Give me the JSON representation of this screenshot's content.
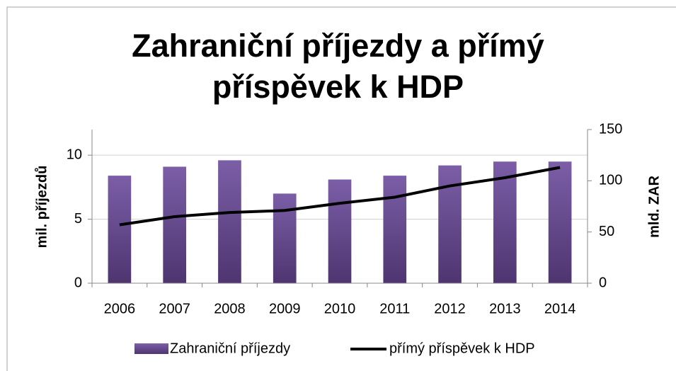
{
  "chart_data": {
    "type": "bar-line",
    "title": "Zahraniční příjezdy a přímý příspěvek k HDP",
    "categories": [
      "2006",
      "2007",
      "2008",
      "2009",
      "2010",
      "2011",
      "2012",
      "2013",
      "2014"
    ],
    "series": [
      {
        "name": "Zahraniční příjezdy",
        "type": "bar",
        "color": "#7b5ea7",
        "values": [
          8.4,
          9.1,
          9.6,
          7.0,
          8.1,
          8.4,
          9.2,
          9.5,
          9.5
        ]
      },
      {
        "name": "přímý příspěvek k HDP",
        "type": "line",
        "axis": "y2",
        "color": "#000000",
        "values": [
          57,
          65,
          69,
          71,
          78,
          84,
          95,
          103,
          113
        ]
      }
    ],
    "ylabel": "mil. příjezdů",
    "y2label": "mld. ZAR",
    "ylim": [
      0,
      12
    ],
    "yticks": [
      0,
      5,
      10
    ],
    "y2lim": [
      0,
      150
    ],
    "y2ticks": [
      0,
      50,
      100,
      150
    ],
    "grid": true,
    "legend": "bottom"
  }
}
